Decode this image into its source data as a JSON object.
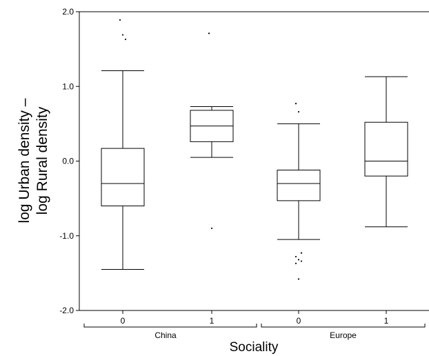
{
  "chart_data": {
    "type": "box",
    "ylabel_line1": "log Urban density –",
    "ylabel_line2": "log Rural density",
    "xlabel": "Sociality",
    "ylim": [
      -2.0,
      2.0
    ],
    "yticks": [
      {
        "value": 2.0,
        "label": "2.0"
      },
      {
        "value": 1.0,
        "label": "1.0"
      },
      {
        "value": 0.0,
        "label": "0.0"
      },
      {
        "value": -1.0,
        "label": "-1.0"
      },
      {
        "value": -2.0,
        "label": "-2.0"
      }
    ],
    "groups": [
      {
        "label": "China",
        "categories": [
          "0",
          "1"
        ]
      },
      {
        "label": "Europe",
        "categories": [
          "0",
          "1"
        ]
      }
    ],
    "boxes": [
      {
        "group": "China",
        "category": "0",
        "whisker_low": -1.45,
        "q1": -0.6,
        "median": -0.3,
        "q3": 0.17,
        "whisker_high": 1.21,
        "outliers": [
          1.89,
          1.69,
          1.63
        ]
      },
      {
        "group": "China",
        "category": "1",
        "whisker_low": 0.05,
        "q1": 0.26,
        "median": 0.47,
        "q3": 0.68,
        "whisker_high": 0.73,
        "outliers": [
          1.71,
          -0.9
        ]
      },
      {
        "group": "Europe",
        "category": "0",
        "whisker_low": -1.05,
        "q1": -0.53,
        "median": -0.3,
        "q3": -0.12,
        "whisker_high": 0.5,
        "outliers": [
          0.77,
          0.66,
          -1.23,
          -1.28,
          -1.32,
          -1.34,
          -1.37,
          -1.58
        ]
      },
      {
        "group": "Europe",
        "category": "1",
        "whisker_low": -0.88,
        "q1": -0.2,
        "median": 0.0,
        "q3": 0.52,
        "whisker_high": 1.13,
        "outliers": []
      }
    ],
    "grid": false,
    "legend": "none"
  }
}
